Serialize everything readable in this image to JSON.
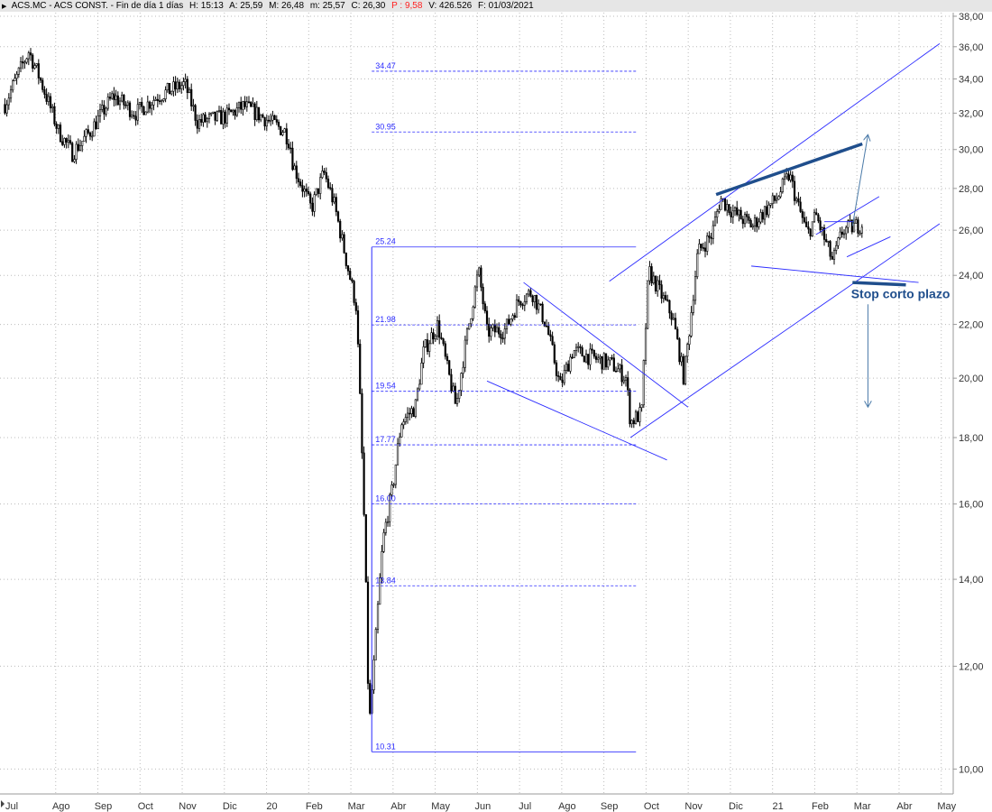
{
  "header": {
    "symbol": "ACS.MC - ACS CONST. - Fin de día 1 días",
    "time": "H: 15:13",
    "open": "A: 25,59",
    "high": "M: 26,48",
    "low": "m: 25,57",
    "close": "C: 26,30",
    "pct": "P : 9,58",
    "volume": "V: 426.526",
    "date": "F: 01/03/2021",
    "pct_color": "#ff2020"
  },
  "chart_data": {
    "type": "candlestick",
    "scale": "log",
    "ylim": [
      10,
      38
    ],
    "grid": true,
    "y_ticks": [
      "38,00",
      "36,00",
      "34,00",
      "32,00",
      "30,00",
      "28,00",
      "26,00",
      "24,00",
      "22,00",
      "20,00",
      "18,00",
      "16,00",
      "14,00",
      "12,00",
      "10,00"
    ],
    "x_ticks": [
      "Jul",
      "Ago",
      "Sep",
      "Oct",
      "Nov",
      "Dic",
      "20",
      "Feb",
      "Mar",
      "Abr",
      "May",
      "Jun",
      "Jul",
      "Ago",
      "Sep",
      "Oct",
      "Nov",
      "Dic",
      "21",
      "Feb",
      "Mar",
      "Abr",
      "May"
    ],
    "close_path": [
      [
        "2019-06-21",
        32.5
      ],
      [
        "2019-07-08",
        35.7
      ],
      [
        "2019-07-16",
        34.0
      ],
      [
        "2019-07-29",
        31.0
      ],
      [
        "2019-08-09",
        29.8
      ],
      [
        "2019-08-22",
        31.0
      ],
      [
        "2019-09-08",
        33.0
      ],
      [
        "2019-09-24",
        32.0
      ],
      [
        "2019-10-10",
        33.0
      ],
      [
        "2019-10-29",
        33.7
      ],
      [
        "2019-11-08",
        31.5
      ],
      [
        "2019-11-28",
        31.8
      ],
      [
        "2019-12-11",
        32.4
      ],
      [
        "2019-12-24",
        31.8
      ],
      [
        "2020-01-10",
        31.0
      ],
      [
        "2020-01-14",
        30.3
      ],
      [
        "2020-01-16",
        29.2
      ],
      [
        "2020-01-29",
        27.0
      ],
      [
        "2020-02-08",
        28.8
      ],
      [
        "2020-02-15",
        27.3
      ],
      [
        "2020-02-24",
        24.6
      ],
      [
        "2020-03-01",
        22.7
      ],
      [
        "2020-03-04",
        18.8
      ],
      [
        "2020-03-07",
        15.0
      ],
      [
        "2020-03-10",
        10.7
      ],
      [
        "2020-03-14",
        12.2
      ],
      [
        "2020-03-20",
        15.0
      ],
      [
        "2020-03-27",
        16.5
      ],
      [
        "2020-04-03",
        18.5
      ],
      [
        "2020-04-13",
        19.0
      ],
      [
        "2020-04-19",
        21.0
      ],
      [
        "2020-04-29",
        22.0
      ],
      [
        "2020-05-05",
        20.5
      ],
      [
        "2020-05-12",
        19.0
      ],
      [
        "2020-05-18",
        21.0
      ],
      [
        "2020-05-28",
        24.2
      ],
      [
        "2020-06-04",
        21.7
      ],
      [
        "2020-06-17",
        21.8
      ],
      [
        "2020-06-27",
        23.0
      ],
      [
        "2020-07-06",
        23.3
      ],
      [
        "2020-07-16",
        22.0
      ],
      [
        "2020-07-26",
        19.7
      ],
      [
        "2020-08-05",
        21.0
      ],
      [
        "2020-08-21",
        20.7
      ],
      [
        "2020-09-03",
        20.5
      ],
      [
        "2020-09-13",
        20.0
      ],
      [
        "2020-09-16",
        18.5
      ],
      [
        "2020-09-24",
        18.8
      ],
      [
        "2020-09-29",
        24.2
      ],
      [
        "2020-10-06",
        23.4
      ],
      [
        "2020-10-16",
        22.3
      ],
      [
        "2020-10-24",
        20.0
      ],
      [
        "2020-10-28",
        21.8
      ],
      [
        "2020-11-04",
        25.0
      ],
      [
        "2020-11-14",
        25.8
      ],
      [
        "2020-11-20",
        27.5
      ],
      [
        "2020-11-30",
        26.8
      ],
      [
        "2020-12-13",
        26.2
      ],
      [
        "2020-12-20",
        26.8
      ],
      [
        "2020-12-30",
        27.5
      ],
      [
        "2021-01-09",
        28.7
      ],
      [
        "2021-01-15",
        27.2
      ],
      [
        "2021-01-22",
        25.8
      ],
      [
        "2021-01-28",
        26.7
      ],
      [
        "2021-02-04",
        25.6
      ],
      [
        "2021-02-10",
        24.6
      ],
      [
        "2021-02-17",
        26.0
      ],
      [
        "2021-03-01",
        26.3
      ]
    ],
    "fibonacci": {
      "start": "2020-03-12",
      "end": "2020-09-20",
      "levels": [
        {
          "label": "34.47",
          "value": 34.47,
          "style": "dashed"
        },
        {
          "label": "30.95",
          "value": 30.95,
          "style": "dashed"
        },
        {
          "label": "25.24",
          "value": 25.24,
          "style": "solid"
        },
        {
          "label": "21.98",
          "value": 21.98,
          "style": "dashed"
        },
        {
          "label": "19.54",
          "value": 19.54,
          "style": "dashed"
        },
        {
          "label": "17.77",
          "value": 17.77,
          "style": "dashed"
        },
        {
          "label": "16.00",
          "value": 16.0,
          "style": "dashed"
        },
        {
          "label": "13.84",
          "value": 13.84,
          "style": "dashed"
        },
        {
          "label": "10.31",
          "value": 10.31,
          "style": "solid"
        }
      ]
    },
    "trendlines": [
      {
        "from": [
          "2020-08-31",
          23.75
        ],
        "to": [
          "2021-04-26",
          36.2
        ],
        "kind": "thin"
      },
      {
        "from": [
          "2020-09-16",
          18.0
        ],
        "to": [
          "2021-04-26",
          26.3
        ],
        "kind": "thin"
      },
      {
        "from": [
          "2020-06-30",
          23.7
        ],
        "to": [
          "2020-10-27",
          19.0
        ],
        "kind": "thin"
      },
      {
        "from": [
          "2020-06-04",
          19.9
        ],
        "to": [
          "2020-10-12",
          17.3
        ],
        "kind": "thin"
      },
      {
        "from": [
          "2020-12-12",
          24.4
        ],
        "to": [
          "2021-04-11",
          23.7
        ],
        "kind": "thin"
      },
      {
        "from": [
          "2021-01-28",
          25.8
        ],
        "to": [
          "2021-03-13",
          27.6
        ],
        "kind": "thin"
      },
      {
        "from": [
          "2021-02-20",
          24.8
        ],
        "to": [
          "2021-03-21",
          25.7
        ],
        "kind": "thin"
      },
      {
        "from": [
          "2021-02-04",
          26.4
        ],
        "to": [
          "2021-02-25",
          26.4
        ],
        "kind": "thin"
      },
      {
        "from": [
          "2020-11-17",
          27.7
        ],
        "to": [
          "2021-03-01",
          30.3
        ],
        "kind": "thick"
      },
      {
        "from": [
          "2021-02-24",
          23.7
        ],
        "to": [
          "2021-04-02",
          23.6
        ],
        "kind": "thick"
      },
      {
        "from": [
          "2021-02-24",
          26.2
        ],
        "to": [
          "2021-03-05",
          30.8
        ],
        "kind": "arrow"
      },
      {
        "from": [
          "2021-03-05",
          22.8
        ],
        "to": [
          "2021-03-05",
          19.0
        ],
        "kind": "arrow"
      }
    ],
    "annotation": {
      "text": "Stop corto plazo",
      "date": "2021-02-23",
      "value": 23.05
    },
    "colors": {
      "line": "#2a2aff",
      "thick": "#1f4e8c",
      "arrow": "#4a7aa8",
      "candle": "#000000"
    }
  }
}
